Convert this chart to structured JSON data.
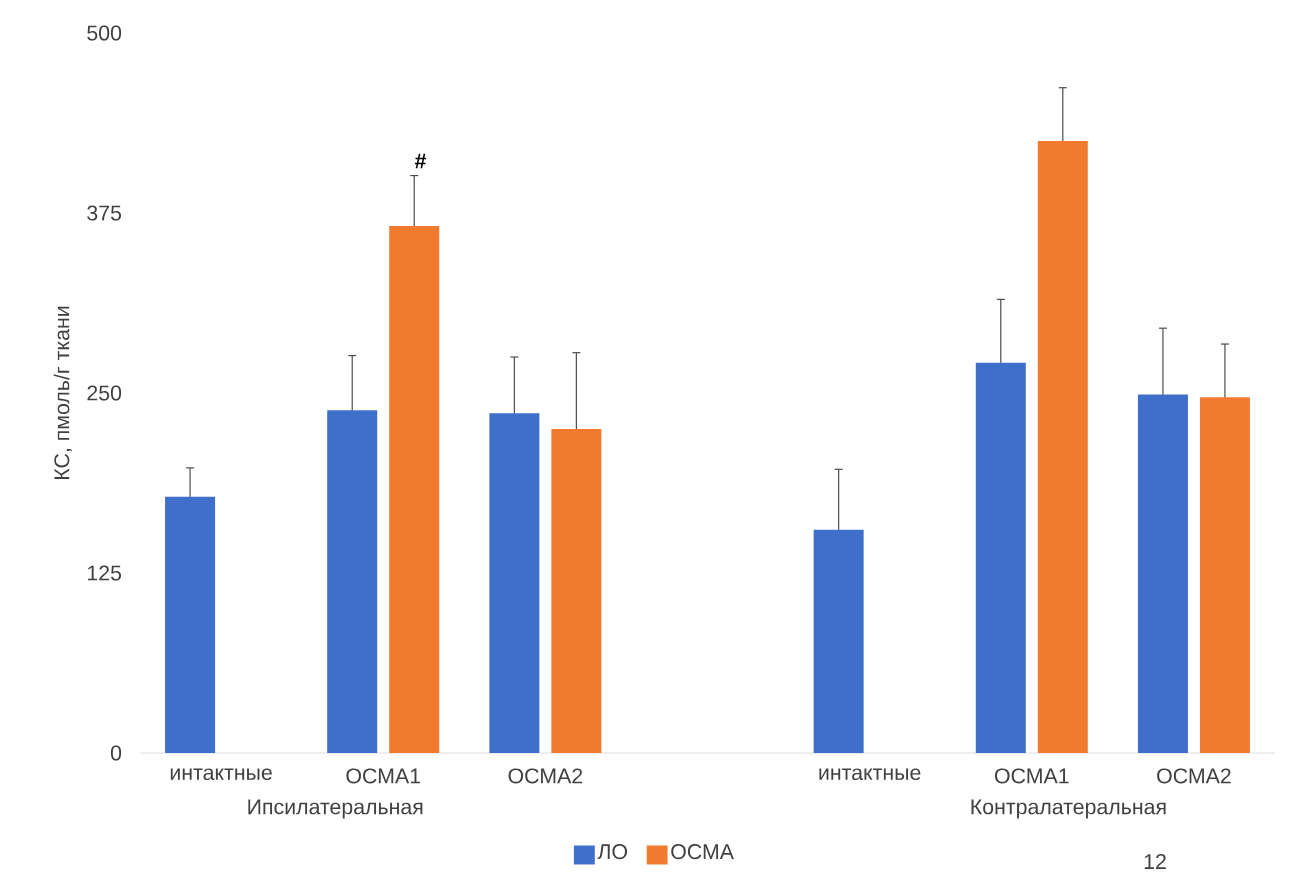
{
  "chart_data": {
    "type": "bar",
    "ylabel": "КС, пмоль/г ткани",
    "categories": [
      "интактные",
      "ОСМА1",
      "ОСМА2",
      null,
      "интактные",
      "ОСМА1",
      "ОСМА2"
    ],
    "series": [
      {
        "name": "ЛО",
        "color": "#3f6fcb",
        "values": [
          178,
          238,
          236,
          null,
          155,
          271,
          249
        ],
        "errors": [
          20,
          38,
          39,
          null,
          42,
          44,
          46
        ]
      },
      {
        "name": "ОСМА",
        "color": "#f07b2e",
        "values": [
          null,
          366,
          225,
          null,
          null,
          425,
          247
        ],
        "errors": [
          null,
          35,
          53,
          null,
          null,
          37,
          37
        ]
      }
    ],
    "ylim": [
      0,
      500
    ],
    "yticks": [
      0,
      125,
      250,
      375,
      500
    ],
    "legend": "bottom",
    "annotations": [
      "#",
      "Ипсилатеральная",
      "Контралатеральная",
      "12"
    ]
  }
}
